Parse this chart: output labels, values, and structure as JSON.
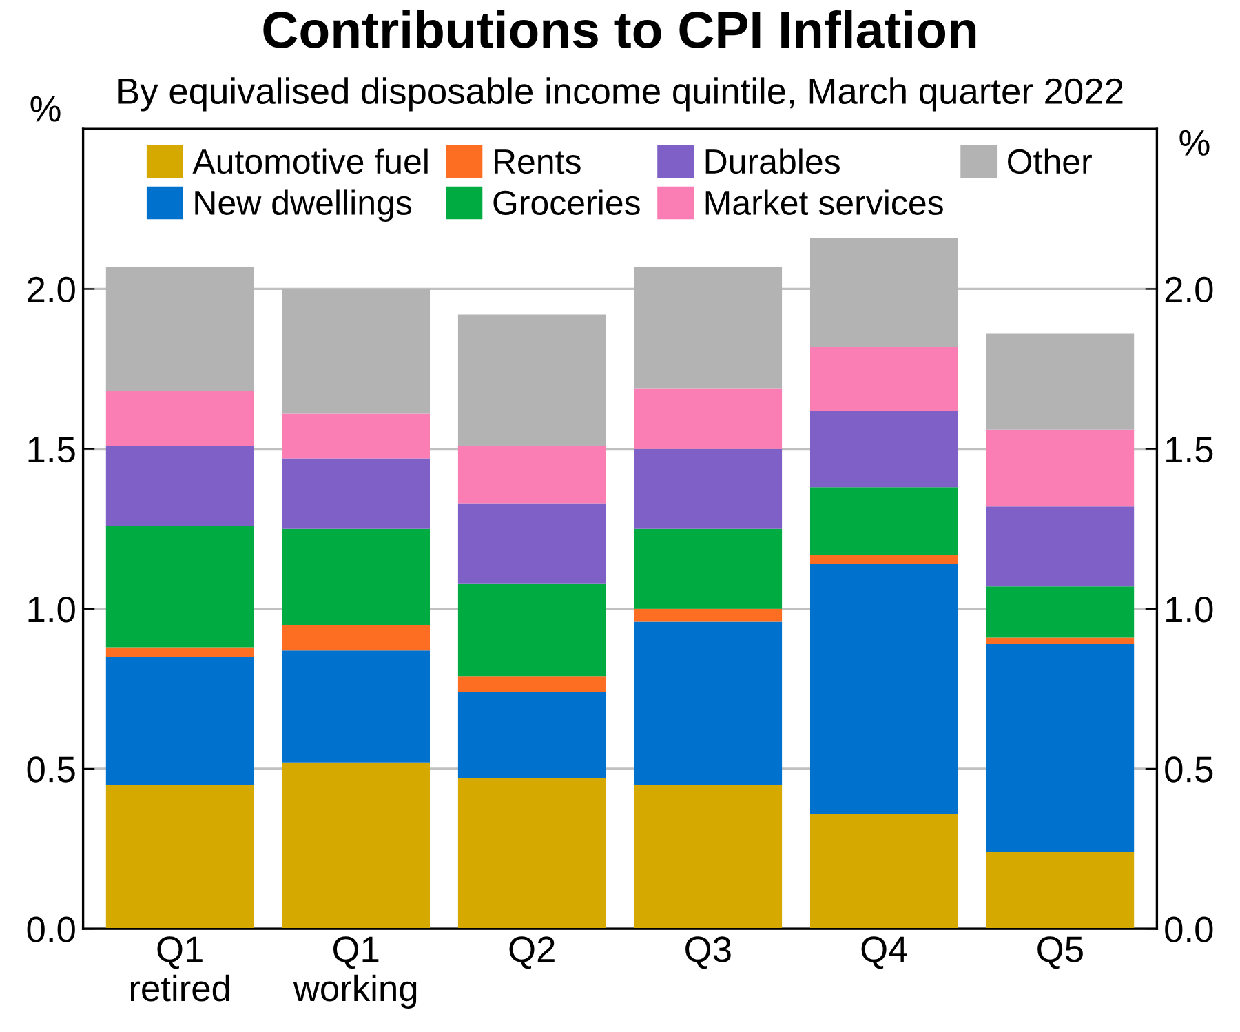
{
  "chart_data": {
    "type": "bar",
    "title": "Contributions to CPI Inflation",
    "subtitle": "By equivalised disposable income quintile, March quarter 2022",
    "ylabel": "%",
    "y2label": "%",
    "categories": [
      "Q1\nretired",
      "Q1\nworking",
      "Q2",
      "Q3",
      "Q4",
      "Q5"
    ],
    "stacked": true,
    "grid": "y",
    "legend": "top",
    "ylim": [
      0,
      2.5
    ],
    "yticks": [
      {
        "value": 0,
        "label": "0.0"
      },
      {
        "value": 0.5,
        "label": "0.5"
      },
      {
        "value": 1,
        "label": "1.0"
      },
      {
        "value": 1.5,
        "label": "1.5"
      },
      {
        "value": 2,
        "label": "2.0"
      }
    ],
    "y2lim": [
      0,
      2.5
    ],
    "y2ticks": [
      {
        "value": 0,
        "label": "0.0"
      },
      {
        "value": 0.5,
        "label": "0.5"
      },
      {
        "value": 1,
        "label": "1.0"
      },
      {
        "value": 1.5,
        "label": "1.5"
      },
      {
        "value": 2,
        "label": "2.0"
      }
    ],
    "series": [
      {
        "name": "Automotive fuel",
        "color": "#d6a900",
        "values": [
          0.45,
          0.52,
          0.47,
          0.45,
          0.36,
          0.24
        ]
      },
      {
        "name": "New dwellings",
        "color": "#0072ce",
        "values": [
          0.4,
          0.35,
          0.27,
          0.51,
          0.78,
          0.65
        ]
      },
      {
        "name": "Rents",
        "color": "#fe6e22",
        "values": [
          0.03,
          0.08,
          0.05,
          0.04,
          0.03,
          0.02
        ]
      },
      {
        "name": "Groceries",
        "color": "#00ac41",
        "values": [
          0.38,
          0.3,
          0.29,
          0.25,
          0.21,
          0.16
        ]
      },
      {
        "name": "Durables",
        "color": "#7f60c6",
        "values": [
          0.25,
          0.22,
          0.25,
          0.25,
          0.24,
          0.25
        ]
      },
      {
        "name": "Market services",
        "color": "#fa7db4",
        "values": [
          0.17,
          0.14,
          0.18,
          0.19,
          0.2,
          0.24
        ]
      },
      {
        "name": "Other",
        "color": "#b3b3b3",
        "values": [
          0.39,
          0.39,
          0.41,
          0.38,
          0.34,
          0.3
        ]
      }
    ]
  }
}
